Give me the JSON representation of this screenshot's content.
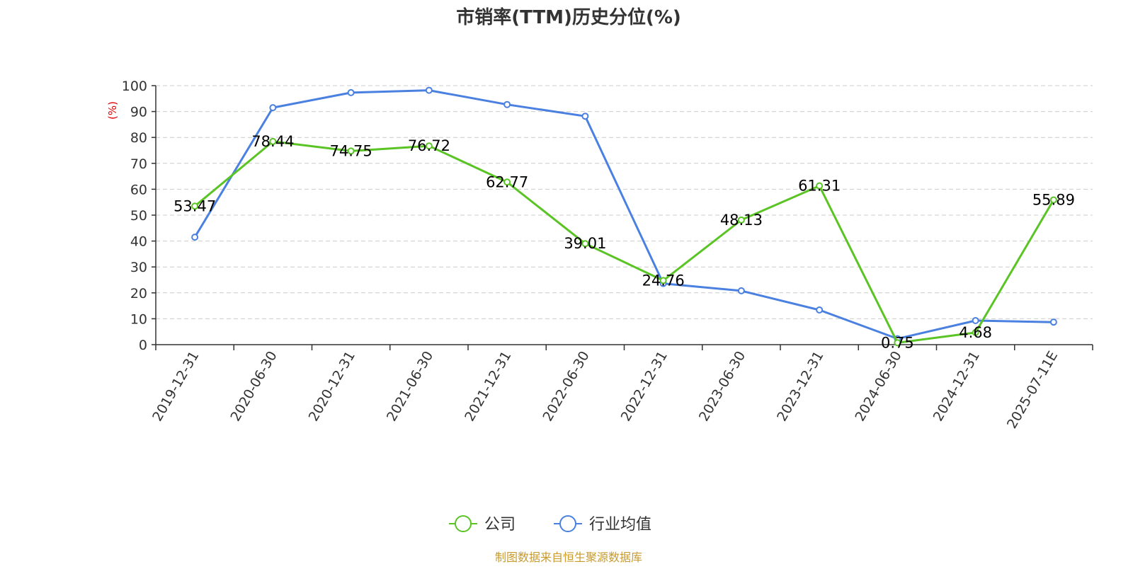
{
  "chart_data": {
    "type": "line",
    "title": "市销率(TTM)历史分位(%)",
    "ylabel": "(%)",
    "xlabel": "",
    "ylim": [
      0,
      100
    ],
    "yticks": [
      0,
      10,
      20,
      30,
      40,
      50,
      60,
      70,
      80,
      90,
      100
    ],
    "grid": true,
    "legend_position": "bottom",
    "categories": [
      "2019-12-31",
      "2020-06-30",
      "2020-12-31",
      "2021-06-30",
      "2021-12-31",
      "2022-06-30",
      "2022-12-31",
      "2023-06-30",
      "2023-12-31",
      "2024-06-30",
      "2024-12-31",
      "2025-07-11E"
    ],
    "series": [
      {
        "name": "公司",
        "color": "#5bc425",
        "show_labels": true,
        "labels": [
          "53.47",
          "78.44",
          "74.75",
          "76.72",
          "62.77",
          "39.01",
          "24.76",
          "48.13",
          "61.31",
          "0.75",
          "4.68",
          "55.89"
        ],
        "values": [
          53.47,
          78.44,
          74.75,
          76.72,
          62.77,
          39.01,
          24.76,
          48.13,
          61.31,
          0.75,
          4.68,
          55.89
        ]
      },
      {
        "name": "行业均值",
        "color": "#4a80e0",
        "show_labels": false,
        "values": [
          41.5,
          91.5,
          97.3,
          98.2,
          92.7,
          88.2,
          23.6,
          20.8,
          13.4,
          2.3,
          9.3,
          8.7
        ]
      }
    ],
    "source": "制图数据来自恒生聚源数据库"
  }
}
